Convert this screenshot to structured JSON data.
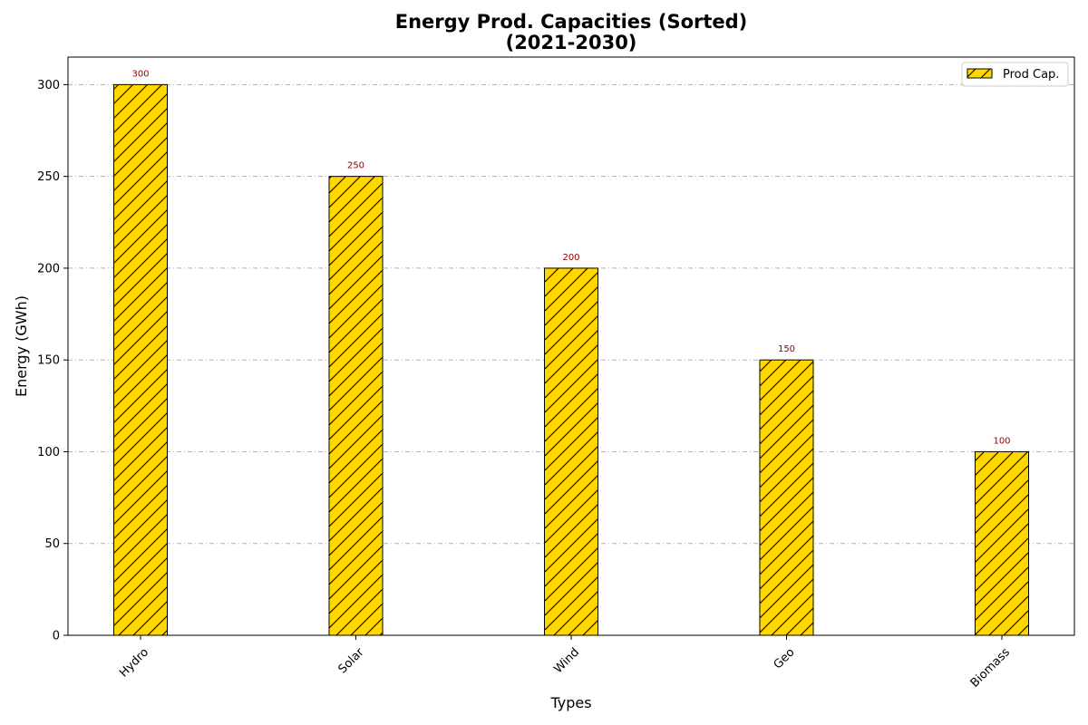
{
  "chart_data": {
    "type": "bar",
    "title_lines": [
      "Energy Prod. Capacities (Sorted)",
      "(2021-2030)"
    ],
    "xlabel": "Types",
    "ylabel": "Energy (GWh)",
    "categories": [
      "Hydro",
      "Solar",
      "Wind",
      "Geo",
      "Biomass"
    ],
    "series": [
      {
        "name": "Prod Cap.",
        "values": [
          300,
          250,
          200,
          150,
          100
        ]
      }
    ],
    "data_labels": [
      "300",
      "250",
      "200",
      "150",
      "100"
    ],
    "ylim": [
      0,
      315
    ],
    "yticks": [
      0,
      50,
      100,
      150,
      200,
      250,
      300
    ],
    "ytick_labels": [
      "0",
      "50",
      "100",
      "150",
      "200",
      "250",
      "300"
    ],
    "grid": "horizontal dash-dot",
    "legend_position": "top-right",
    "bar_hatch": "diagonal",
    "colors": {
      "bar_fill": "#FFD700",
      "bar_edge": "#000000",
      "data_label": "#8B0000",
      "grid": "#b0b0b0"
    }
  }
}
